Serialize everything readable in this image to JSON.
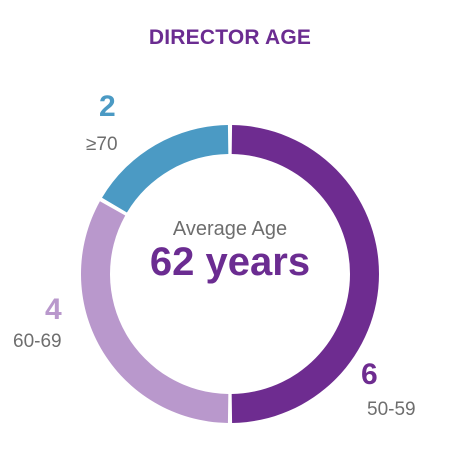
{
  "chart_data": {
    "type": "donut",
    "title": "DIRECTOR AGE",
    "center_label": "Average Age",
    "center_value": "62 years",
    "slices": [
      {
        "category": "50-59",
        "value": 6,
        "color": "#6e2c90"
      },
      {
        "category": "60-69",
        "value": 4,
        "color": "#b998cc"
      },
      {
        "category": "≥70",
        "value": 2,
        "color": "#4b9ac4"
      }
    ]
  }
}
